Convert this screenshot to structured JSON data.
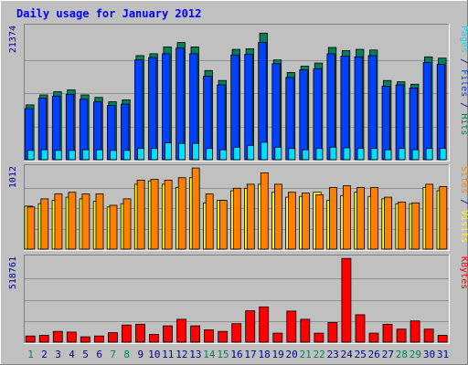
{
  "chart_data": {
    "type": "bar",
    "title": "Daily usage for January 2012",
    "colors": {
      "background": "#c0c0c0",
      "title": "#0000ff",
      "hits": "#00805c",
      "files": "#0040ff",
      "pages": "#00e0ff",
      "visits": "#ffff00",
      "sites": "#ff8000",
      "kbytes": "#ff0000",
      "weekend_label": "#00805c",
      "weekday_label": "#000080"
    },
    "categories": [
      "1",
      "2",
      "3",
      "4",
      "5",
      "6",
      "7",
      "8",
      "9",
      "10",
      "11",
      "12",
      "13",
      "14",
      "15",
      "16",
      "17",
      "18",
      "19",
      "20",
      "21",
      "22",
      "23",
      "24",
      "25",
      "26",
      "27",
      "28",
      "29",
      "30",
      "31"
    ],
    "weekend_days": [
      "1",
      "7",
      "8",
      "14",
      "15",
      "21",
      "22",
      "28",
      "29"
    ],
    "panels": [
      {
        "id": "hits",
        "ymax_label": "21374",
        "ymax": 21374,
        "ylabel_parts": [
          {
            "text": "Pages",
            "color": "#00e0ff"
          },
          {
            "text": " / ",
            "color": "#000080"
          },
          {
            "text": "Files",
            "color": "#0040ff"
          },
          {
            "text": " / ",
            "color": "#000080"
          },
          {
            "text": "Hits",
            "color": "#00805c"
          }
        ],
        "series": [
          {
            "name": "Hits",
            "color": "#00805c",
            "values": [
              8800,
              10400,
              10900,
              11200,
              10400,
              10000,
              9300,
              9600,
              16700,
              17000,
              18100,
              18800,
              18100,
              14300,
              12700,
              17700,
              17800,
              20300,
              16000,
              14000,
              15000,
              15500,
              18000,
              17500,
              17700,
              17600,
              12700,
              12500,
              12100,
              16500,
              16300
            ]
          },
          {
            "name": "Files",
            "color": "#0040ff",
            "values": [
              8200,
              9900,
              10200,
              10500,
              9700,
              9300,
              8700,
              8900,
              16000,
              16400,
              17000,
              17900,
              17000,
              13400,
              12000,
              16800,
              16900,
              18800,
              15400,
              13200,
              14400,
              14600,
              17000,
              16600,
              16500,
              16700,
              11800,
              12000,
              11500,
              15600,
              15300
            ]
          },
          {
            "name": "Pages",
            "color": "#00e0ff",
            "values": [
              1500,
              1600,
              1500,
              1500,
              1600,
              1600,
              1500,
              1500,
              1800,
              1800,
              2700,
              2600,
              2600,
              1800,
              1600,
              2000,
              2300,
              2800,
              2000,
              1800,
              1600,
              1800,
              2000,
              1900,
              1800,
              1800,
              1600,
              1800,
              1600,
              1800,
              1800
            ]
          }
        ]
      },
      {
        "id": "visits",
        "ymax_label": "1012",
        "ymax": 1012,
        "ylabel_parts": [
          {
            "text": "Sites",
            "color": "#ff8000"
          },
          {
            "text": " / ",
            "color": "#000080"
          },
          {
            "text": "Visits",
            "color": "#ffff00"
          }
        ],
        "series": [
          {
            "name": "Visits",
            "color": "#ffff00",
            "values": [
              530,
              560,
              600,
              640,
              620,
              590,
              520,
              560,
              800,
              840,
              800,
              760,
              880,
              570,
              600,
              720,
              750,
              800,
              700,
              640,
              650,
              700,
              600,
              660,
              700,
              650,
              620,
              560,
              560,
              760,
              720
            ]
          },
          {
            "name": "Sites",
            "color": "#ff8000",
            "values": [
              520,
              620,
              680,
              700,
              680,
              680,
              540,
              620,
              850,
              860,
              850,
              880,
              1000,
              680,
              600,
              750,
              800,
              940,
              800,
              700,
              690,
              670,
              760,
              780,
              760,
              760,
              640,
              580,
              570,
              800,
              770
            ]
          }
        ]
      },
      {
        "id": "kbytes",
        "ymax_label": "518761",
        "ymax": 518761,
        "ylabel_parts": [
          {
            "text": "KBytes",
            "color": "#ff0000"
          }
        ],
        "series": [
          {
            "name": "KBytes",
            "color": "#ff0000",
            "values": [
              38000,
              42000,
              66000,
              62000,
              33000,
              38000,
              58000,
              105000,
              110000,
              48000,
              100000,
              140000,
              100000,
              76000,
              66000,
              113000,
              192000,
              216000,
              55000,
              190000,
              140000,
              55000,
              120000,
              512000,
              168000,
              55000,
              110000,
              80000,
              130000,
              80000,
              42000
            ]
          }
        ]
      }
    ]
  }
}
